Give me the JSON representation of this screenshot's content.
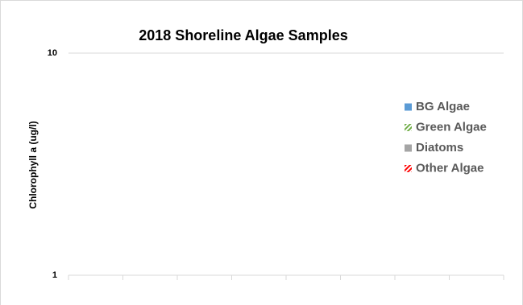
{
  "chart_data": {
    "type": "bar",
    "title": "2018 Shoreline Algae Samples",
    "y_label": "Chlorophyll a (ug/l)",
    "categories": [
      null,
      null,
      null,
      null,
      null,
      null,
      null,
      null
    ],
    "series": [
      {
        "name": "BG Algae",
        "color": "#5b9bd5",
        "pattern": "solid",
        "values": [
          null,
          null,
          null,
          null,
          null,
          null,
          null,
          null
        ]
      },
      {
        "name": "Green Algae",
        "color": "#70ad47",
        "pattern": "hatch",
        "values": [
          null,
          null,
          null,
          null,
          null,
          null,
          null,
          null
        ]
      },
      {
        "name": "Diatoms",
        "color": "#a5a5a5",
        "pattern": "solid",
        "values": [
          null,
          null,
          null,
          null,
          null,
          null,
          null,
          null
        ]
      },
      {
        "name": "Other Algae",
        "color": "#ff0000",
        "pattern": "hatch",
        "values": [
          null,
          null,
          null,
          null,
          null,
          null,
          null,
          null
        ]
      }
    ],
    "yscale": "log",
    "ylim": [
      1,
      10
    ],
    "yticks": [
      1,
      10
    ],
    "grid": true,
    "legend": "right"
  }
}
